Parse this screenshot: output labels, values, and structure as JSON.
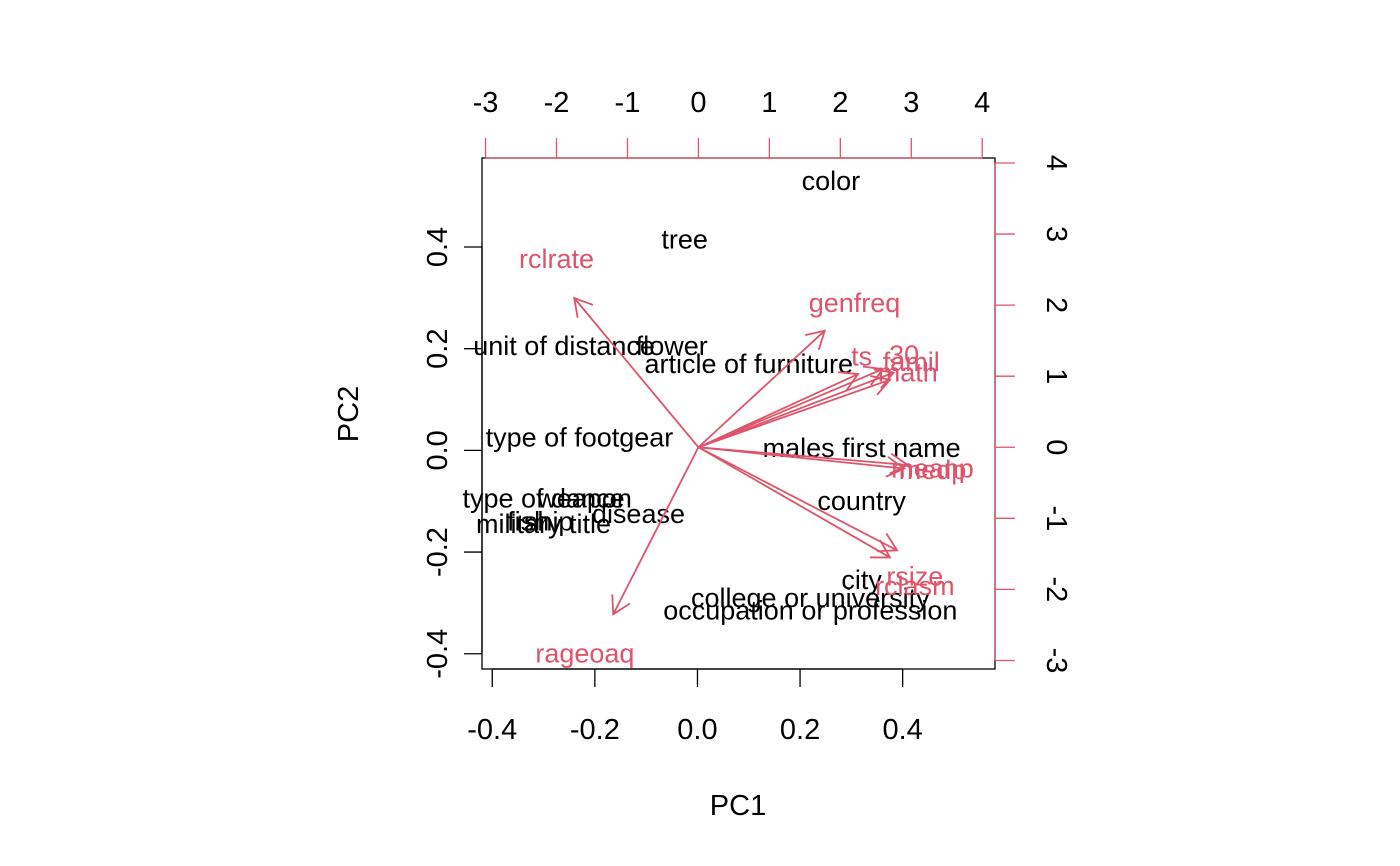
{
  "chart_data": {
    "type": "scatter",
    "subtype": "biplot",
    "xlabel": "PC1",
    "ylabel": "PC2",
    "xlim": [
      -0.42,
      0.58
    ],
    "ylim": [
      -0.43,
      0.575
    ],
    "xticks": [
      -0.4,
      -0.2,
      0.0,
      0.2,
      0.4
    ],
    "xtick_labels": [
      "-0.4",
      "-0.2",
      "0.0",
      "0.2",
      "0.4"
    ],
    "yticks": [
      -0.4,
      -0.2,
      0.0,
      0.2,
      0.4
    ],
    "ytick_labels": [
      "-0.4",
      "-0.2",
      "0.0",
      "0.2",
      "0.4"
    ],
    "top_axis": {
      "ticks": [
        -3,
        -2,
        -1,
        0,
        1,
        2,
        3,
        4
      ],
      "tick_labels": [
        "-3",
        "-2",
        "-1",
        "0",
        "1",
        "2",
        "3",
        "4"
      ],
      "lim": [
        -3.05,
        4.18
      ],
      "color": "#DF536B"
    },
    "right_axis": {
      "ticks": [
        -3,
        -2,
        -1,
        0,
        1,
        2,
        3,
        4
      ],
      "tick_labels": [
        "-3",
        "-2",
        "-1",
        "0",
        "1",
        "2",
        "3",
        "4"
      ],
      "lim": [
        -3.12,
        4.07
      ],
      "color": "#DF536B"
    },
    "observations": [
      {
        "label": "color",
        "x": 0.26,
        "y": 0.53
      },
      {
        "label": "tree",
        "x": -0.025,
        "y": 0.415
      },
      {
        "label": "unit of distance",
        "x": -0.26,
        "y": 0.205
      },
      {
        "label": "flower",
        "x": -0.05,
        "y": 0.205
      },
      {
        "label": "article of furniture",
        "x": 0.1,
        "y": 0.17
      },
      {
        "label": "type of footgear",
        "x": -0.23,
        "y": 0.025
      },
      {
        "label": "males first name",
        "x": 0.32,
        "y": 0.005
      },
      {
        "label": "country",
        "x": 0.32,
        "y": -0.1
      },
      {
        "label": "type of dance",
        "x": -0.3,
        "y": -0.095
      },
      {
        "label": "weapon",
        "x": -0.22,
        "y": -0.095
      },
      {
        "label": "disease",
        "x": -0.115,
        "y": -0.125
      },
      {
        "label": "fish",
        "x": -0.33,
        "y": -0.14
      },
      {
        "label": "ship",
        "x": -0.29,
        "y": -0.14
      },
      {
        "label": "military title",
        "x": -0.3,
        "y": -0.145
      },
      {
        "label": "city",
        "x": 0.32,
        "y": -0.255
      },
      {
        "label": "college or university",
        "x": 0.22,
        "y": -0.29
      },
      {
        "label": "occupation or profession",
        "x": 0.22,
        "y": -0.315
      }
    ],
    "loadings": [
      {
        "label": "rclrate",
        "x": -1.75,
        "y": 2.1,
        "label_x": -2.0,
        "label_y": 2.65
      },
      {
        "label": "genfreq",
        "x": 1.78,
        "y": 1.64,
        "label_x": 2.2,
        "label_y": 2.03
      },
      {
        "label": "ts",
        "x": 2.25,
        "y": 1.03,
        "label_x": 2.3,
        "label_y": 1.28
      },
      {
        "label": "30",
        "x": 2.6,
        "y": 1.1,
        "label_x": 2.9,
        "label_y": 1.3
      },
      {
        "label": "famil",
        "x": 2.75,
        "y": 1.05,
        "label_x": 3.0,
        "label_y": 1.2
      },
      {
        "label": "math",
        "x": 2.7,
        "y": 0.95,
        "label_x": 2.95,
        "label_y": 1.05
      },
      {
        "label": "meanp",
        "x": 2.95,
        "y": -0.25,
        "label_x": 3.3,
        "label_y": -0.3
      },
      {
        "label": "medp",
        "x": 2.9,
        "y": -0.3,
        "label_x": 3.3,
        "label_y": -0.32
      },
      {
        "label": "rsize",
        "x": 2.8,
        "y": -1.45,
        "label_x": 3.05,
        "label_y": -1.82
      },
      {
        "label": "rclasm",
        "x": 2.7,
        "y": -1.55,
        "label_x": 3.05,
        "label_y": -1.95
      },
      {
        "label": "rageoaq",
        "x": -1.2,
        "y": -2.35,
        "label_x": -1.6,
        "label_y": -2.9
      }
    ]
  }
}
